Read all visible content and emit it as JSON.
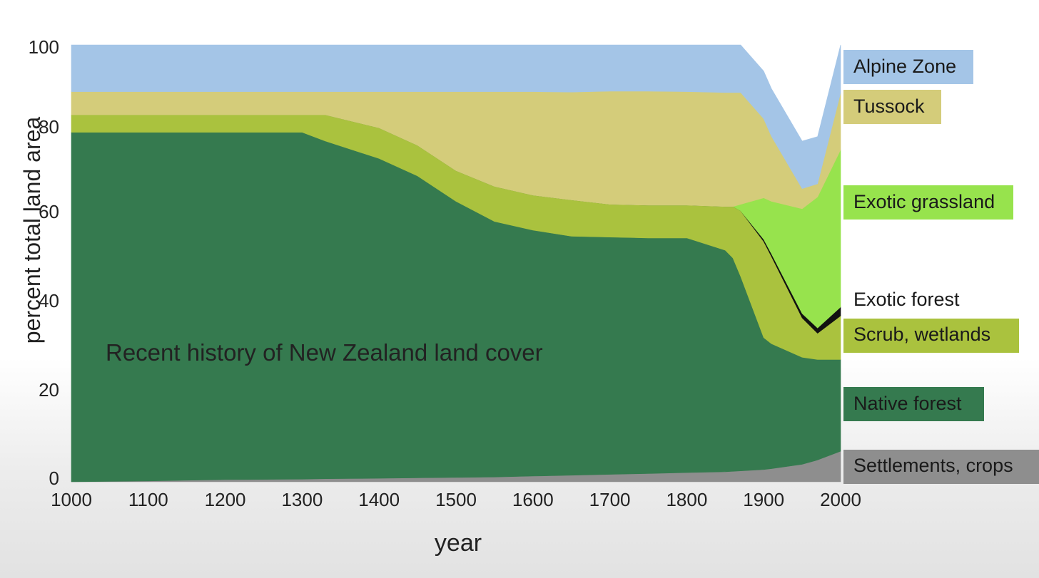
{
  "chart_data": {
    "type": "area",
    "title": "Recent history of New Zealand land cover",
    "xlabel": "year",
    "ylabel": "percent total land area",
    "xlim": [
      1000,
      2000
    ],
    "ylim": [
      0,
      100
    ],
    "x_ticks": [
      "1000",
      "1100",
      "1200",
      "1300",
      "1400",
      "1500",
      "1600",
      "1700",
      "1800",
      "1900",
      "2000"
    ],
    "y_ticks": [
      "0",
      "20",
      "40",
      "60",
      "80",
      "100"
    ],
    "x": [
      1000,
      1100,
      1200,
      1300,
      1330,
      1400,
      1450,
      1500,
      1550,
      1600,
      1650,
      1700,
      1750,
      1800,
      1850,
      1860,
      1870,
      1900,
      1910,
      1950,
      1970,
      2000
    ],
    "stacked": true,
    "legend_position": "right",
    "series": [
      {
        "name": "Settlements, crops",
        "color": "#8e8e8e",
        "values": [
          0,
          0.2,
          0.5,
          0.6,
          0.7,
          0.8,
          0.9,
          1.0,
          1.1,
          1.3,
          1.5,
          1.7,
          1.9,
          2.1,
          2.3,
          2.4,
          2.5,
          2.8,
          3.0,
          4.0,
          5.0,
          7.0
        ]
      },
      {
        "name": "Native forest",
        "color": "#357a4f",
        "values": [
          80,
          79.8,
          79.5,
          79.4,
          77.3,
          73.2,
          69.1,
          63.2,
          58.5,
          56.3,
          54.7,
          54.3,
          53.9,
          53.7,
          50.7,
          48.8,
          44.5,
          30.2,
          28.6,
          24.5,
          23.0,
          21.0
        ]
      },
      {
        "name": "Scrub, wetlands",
        "color": "#aac23e",
        "values": [
          4,
          4,
          4,
          4,
          6,
          7,
          7,
          7,
          8,
          8,
          8.3,
          7.5,
          7.5,
          7.5,
          10.0,
          11.8,
          15.0,
          22.0,
          20.0,
          9.0,
          6.0,
          10.0
        ]
      },
      {
        "name": "Exotic forest",
        "color": "#111111",
        "values": [
          0,
          0,
          0,
          0,
          0,
          0,
          0,
          0,
          0,
          0,
          0,
          0,
          0,
          0,
          0,
          0,
          0,
          0.5,
          0.6,
          1.0,
          1.2,
          2.0
        ]
      },
      {
        "name": "Exotic grassland",
        "color": "#97e34d",
        "values": [
          0,
          0,
          0,
          0,
          0,
          0,
          0,
          0,
          0,
          0,
          0,
          0,
          0,
          0,
          0,
          0,
          1.5,
          9.5,
          12.0,
          24.0,
          30.0,
          36.0
        ]
      },
      {
        "name": "Tussock",
        "color": "#d4cc7a",
        "values": [
          5.3,
          5.3,
          5.3,
          5.3,
          5.3,
          8.3,
          12.3,
          18.1,
          21.7,
          23.7,
          24.7,
          25.9,
          26.1,
          26.0,
          26.1,
          26.1,
          25.6,
          18.1,
          14.9,
          4.6,
          3.0,
          13.0
        ]
      },
      {
        "name": "Alpine Zone",
        "color": "#a4c5e7",
        "values": [
          10.7,
          10.7,
          10.7,
          10.7,
          10.7,
          10.7,
          10.7,
          10.7,
          10.7,
          10.7,
          10.8,
          10.6,
          10.6,
          10.7,
          10.9,
          10.9,
          10.9,
          10.9,
          10.9,
          10.9,
          10.8,
          11.0
        ]
      }
    ]
  }
}
